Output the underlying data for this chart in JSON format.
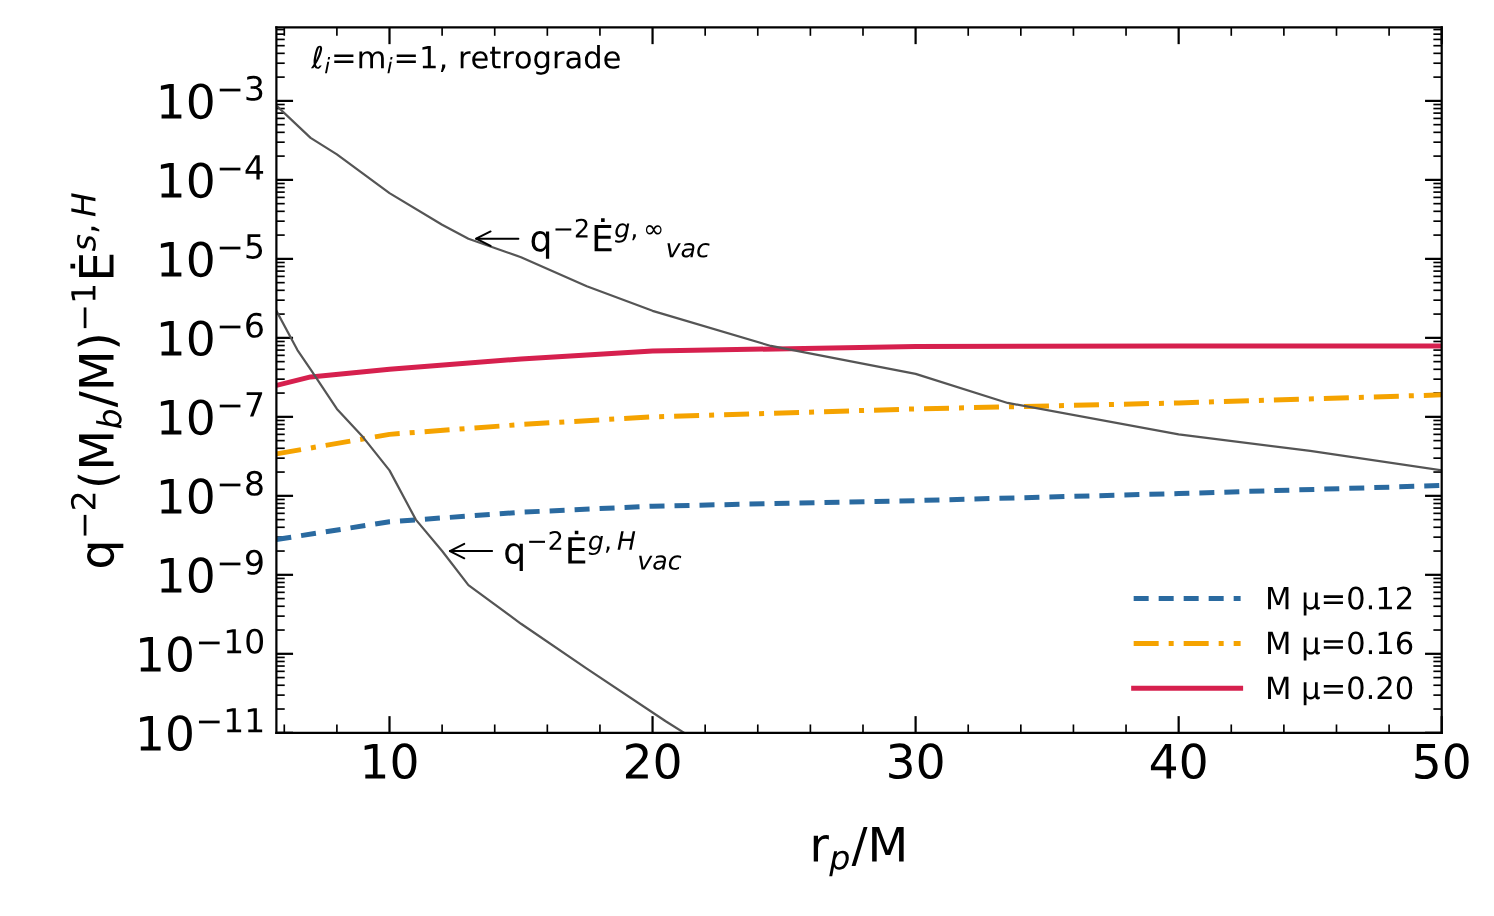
{
  "chart_data": {
    "type": "line",
    "xlabel": "r$_{p}$/M",
    "ylabel": "q$^{−2}$(M$_{b}$/M)$^{−1}$Ė$^{s,H}$",
    "log": "y",
    "xlim": [
      5.7,
      50
    ],
    "xticks": [
      10,
      20,
      30,
      40,
      50
    ],
    "ylim": [
      1e-11,
      0.0085
    ],
    "yticks": [
      {
        "value": 1e-11,
        "label": "10$^{−11}$"
      },
      {
        "value": 1e-10,
        "label": "10$^{−10}$"
      },
      {
        "value": 1e-09,
        "label": "10$^{−9}$"
      },
      {
        "value": 1e-08,
        "label": "10$^{−8}$"
      },
      {
        "value": 1e-07,
        "label": "10$^{−7}$"
      },
      {
        "value": 1e-06,
        "label": "10$^{−6}$"
      },
      {
        "value": 1e-05,
        "label": "10$^{−5}$"
      },
      {
        "value": 0.0001,
        "label": "10$^{−4}$"
      },
      {
        "value": 0.001,
        "label": "10$^{−3}$"
      }
    ],
    "grid": false,
    "legend": "bottom right",
    "series": [
      {
        "name": "M μ=0.12",
        "color": "#2a6aa0",
        "line_style": "dashed",
        "x": [
          5.7,
          10,
          15,
          20,
          30,
          40,
          50
        ],
        "values": [
          2.8e-09,
          4.7e-09,
          6.2e-09,
          7.4e-09,
          8.7e-09,
          1.07e-08,
          1.35e-08
        ]
      },
      {
        "name": "M μ=0.16",
        "color": "#f5a300",
        "line_style": "dashdot",
        "x": [
          5.7,
          10,
          15,
          20,
          30,
          40,
          50
        ],
        "values": [
          3.4e-08,
          6e-08,
          8e-08,
          1e-07,
          1.26e-07,
          1.5e-07,
          1.9e-07
        ]
      },
      {
        "name": "M μ=0.20",
        "color": "#d6204e",
        "line_style": "solid",
        "x": [
          5.7,
          7,
          10,
          15,
          20,
          30,
          40,
          50
        ],
        "values": [
          2.5e-07,
          3.2e-07,
          4e-07,
          5.4e-07,
          6.8e-07,
          7.8e-07,
          7.9e-07,
          7.9e-07
        ]
      },
      {
        "color": "#555555",
        "line_style": "solid",
        "x": [
          5.7,
          7,
          8,
          10,
          12,
          13,
          15,
          17.5,
          20,
          24.5,
          30,
          33.5,
          40,
          45,
          50
        ],
        "values": [
          0.00087,
          0.00034,
          0.00021,
          6.8e-05,
          2.7e-05,
          1.8e-05,
          1.05e-05,
          4.5e-06,
          2.2e-06,
          7.9e-07,
          3.5e-07,
          1.5e-07,
          6e-08,
          3.7e-08,
          2.1e-08
        ]
      },
      {
        "color": "#555555",
        "line_style": "solid",
        "x": [
          5.7,
          6.5,
          7,
          8,
          9,
          10,
          11,
          12,
          13,
          15,
          17.5,
          20.5,
          21.2
        ],
        "values": [
          2.2e-06,
          7e-07,
          4e-07,
          1.26e-07,
          5.5e-08,
          2.1e-08,
          5e-09,
          2e-09,
          7.4e-10,
          2.4e-10,
          6.5e-11,
          1.4e-11,
          1e-11
        ]
      }
    ],
    "annotations": [
      "ℓ$_{i}$=m$_{i}$=1, retrograde",
      {
        "text": "q$^{−2}$Ė$^{g,∞}$$_{vac}$",
        "x": 13,
        "y": 1.8e-05
      },
      {
        "text": "q$^{−2}$Ė$^{g,H}$$_{vac}$",
        "x": 12,
        "y": 2e-09
      }
    ]
  }
}
